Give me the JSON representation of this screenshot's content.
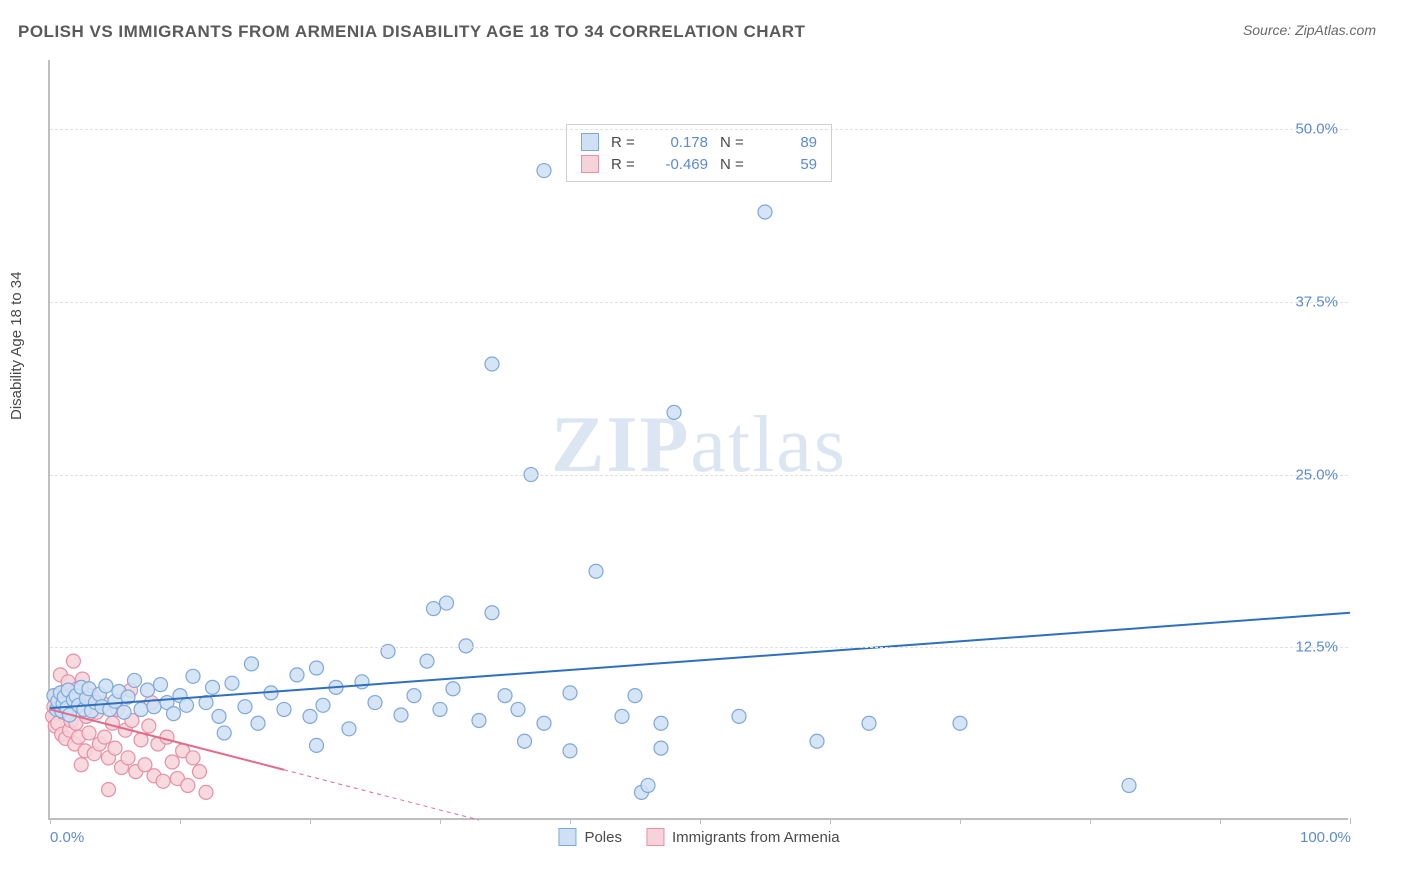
{
  "title": "POLISH VS IMMIGRANTS FROM ARMENIA DISABILITY AGE 18 TO 34 CORRELATION CHART",
  "source": "Source: ZipAtlas.com",
  "y_axis_label": "Disability Age 18 to 34",
  "watermark_a": "ZIP",
  "watermark_b": "atlas",
  "chart": {
    "type": "scatter",
    "background_color": "#ffffff",
    "grid_color": "#e0e0e0",
    "axis_color": "#bfbfbf",
    "label_color": "#5b8bd4",
    "title_color": "#5a5a5a",
    "xlim": [
      0,
      100
    ],
    "ylim": [
      0,
      55
    ],
    "x_ticks": [
      0,
      10,
      20,
      30,
      40,
      50,
      60,
      70,
      80,
      90,
      100
    ],
    "x_tick_labels": {
      "0": "0.0%",
      "100": "100.0%"
    },
    "y_grid": [
      12.5,
      25.0,
      37.5,
      50.0
    ],
    "y_tick_labels": [
      "12.5%",
      "25.0%",
      "37.5%",
      "50.0%"
    ],
    "marker_radius": 7,
    "marker_stroke_width": 1.2,
    "line_width": 2,
    "series": [
      {
        "name": "Poles",
        "fill": "#cfe0f4",
        "stroke": "#7fa8d9",
        "line_color": "#2f6fc1",
        "R": "0.178",
        "N": "89",
        "trend": {
          "x1": 0,
          "y1": 8.1,
          "x2": 100,
          "y2": 15.0,
          "dash": "none"
        },
        "points": [
          [
            0.3,
            9.0
          ],
          [
            0.5,
            8.0
          ],
          [
            0.6,
            8.6
          ],
          [
            0.8,
            9.2
          ],
          [
            0.9,
            7.9
          ],
          [
            1.0,
            8.4
          ],
          [
            1.1,
            8.9
          ],
          [
            1.3,
            8.1
          ],
          [
            1.4,
            9.4
          ],
          [
            1.5,
            7.6
          ],
          [
            1.8,
            8.7
          ],
          [
            2.0,
            9.0
          ],
          [
            2.2,
            8.3
          ],
          [
            2.4,
            9.6
          ],
          [
            2.6,
            8.0
          ],
          [
            2.8,
            8.8
          ],
          [
            3.0,
            9.5
          ],
          [
            3.2,
            7.9
          ],
          [
            3.5,
            8.5
          ],
          [
            3.8,
            9.1
          ],
          [
            4.0,
            8.2
          ],
          [
            4.3,
            9.7
          ],
          [
            4.6,
            8.0
          ],
          [
            5.0,
            8.6
          ],
          [
            5.3,
            9.3
          ],
          [
            5.7,
            7.8
          ],
          [
            6.0,
            8.9
          ],
          [
            6.5,
            10.1
          ],
          [
            7.0,
            8.0
          ],
          [
            7.5,
            9.4
          ],
          [
            8.0,
            8.2
          ],
          [
            8.5,
            9.8
          ],
          [
            9.0,
            8.5
          ],
          [
            9.5,
            7.7
          ],
          [
            10.0,
            9.0
          ],
          [
            10.5,
            8.3
          ],
          [
            11.0,
            10.4
          ],
          [
            12.0,
            8.5
          ],
          [
            12.5,
            9.6
          ],
          [
            13.0,
            7.5
          ],
          [
            14.0,
            9.9
          ],
          [
            15.0,
            8.2
          ],
          [
            15.5,
            11.3
          ],
          [
            16.0,
            7.0
          ],
          [
            17.0,
            9.2
          ],
          [
            18.0,
            8.0
          ],
          [
            19.0,
            10.5
          ],
          [
            20.0,
            7.5
          ],
          [
            20.5,
            11.0
          ],
          [
            21.0,
            8.3
          ],
          [
            22.0,
            9.6
          ],
          [
            23.0,
            6.6
          ],
          [
            24.0,
            10.0
          ],
          [
            25.0,
            8.5
          ],
          [
            26.0,
            12.2
          ],
          [
            27.0,
            7.6
          ],
          [
            28.0,
            9.0
          ],
          [
            29.0,
            11.5
          ],
          [
            29.5,
            15.3
          ],
          [
            30.5,
            15.7
          ],
          [
            30.0,
            8.0
          ],
          [
            31.0,
            9.5
          ],
          [
            32.0,
            12.6
          ],
          [
            33.0,
            7.2
          ],
          [
            34.0,
            15.0
          ],
          [
            34.0,
            33.0
          ],
          [
            35.0,
            9.0
          ],
          [
            36.0,
            8.0
          ],
          [
            37.0,
            25.0
          ],
          [
            38.0,
            47.0
          ],
          [
            38.0,
            7.0
          ],
          [
            40.0,
            9.2
          ],
          [
            40.0,
            5.0
          ],
          [
            42.0,
            18.0
          ],
          [
            44.0,
            7.5
          ],
          [
            45.0,
            9.0
          ],
          [
            45.5,
            2.0
          ],
          [
            46.0,
            2.5
          ],
          [
            47.0,
            7.0
          ],
          [
            48.0,
            29.5
          ],
          [
            53.0,
            7.5
          ],
          [
            55.0,
            44.0
          ],
          [
            59.0,
            5.7
          ],
          [
            63.0,
            7.0
          ],
          [
            70.0,
            7.0
          ],
          [
            83.0,
            2.5
          ],
          [
            47.0,
            5.2
          ],
          [
            36.5,
            5.7
          ],
          [
            20.5,
            5.4
          ],
          [
            13.4,
            6.3
          ]
        ]
      },
      {
        "name": "Immigrants from Armenia",
        "fill": "#f6d3db",
        "stroke": "#e98fa6",
        "line_color": "#e46a8a",
        "R": "-0.469",
        "N": "59",
        "trend": {
          "x1": 0,
          "y1": 8.0,
          "x2": 33,
          "y2": 0.0,
          "dash": "4 4",
          "solid_until": 18
        },
        "points": [
          [
            0.2,
            7.5
          ],
          [
            0.3,
            8.2
          ],
          [
            0.4,
            6.8
          ],
          [
            0.5,
            9.0
          ],
          [
            0.6,
            7.0
          ],
          [
            0.7,
            8.5
          ],
          [
            0.8,
            10.5
          ],
          [
            0.9,
            6.2
          ],
          [
            1.0,
            7.8
          ],
          [
            1.1,
            9.3
          ],
          [
            1.2,
            5.9
          ],
          [
            1.3,
            8.0
          ],
          [
            1.4,
            10.0
          ],
          [
            1.5,
            6.5
          ],
          [
            1.6,
            7.2
          ],
          [
            1.7,
            8.8
          ],
          [
            1.8,
            11.5
          ],
          [
            1.9,
            5.5
          ],
          [
            2.0,
            7.0
          ],
          [
            2.1,
            9.5
          ],
          [
            2.2,
            6.0
          ],
          [
            2.3,
            8.3
          ],
          [
            2.5,
            10.2
          ],
          [
            2.7,
            5.0
          ],
          [
            2.8,
            7.5
          ],
          [
            3.0,
            6.3
          ],
          [
            3.2,
            9.0
          ],
          [
            3.4,
            4.8
          ],
          [
            3.6,
            7.8
          ],
          [
            3.8,
            5.5
          ],
          [
            4.0,
            8.5
          ],
          [
            4.2,
            6.0
          ],
          [
            4.5,
            4.5
          ],
          [
            4.8,
            7.0
          ],
          [
            5.0,
            5.2
          ],
          [
            5.2,
            8.0
          ],
          [
            5.5,
            3.8
          ],
          [
            5.8,
            6.5
          ],
          [
            6.0,
            4.5
          ],
          [
            6.3,
            7.2
          ],
          [
            6.6,
            3.5
          ],
          [
            7.0,
            5.8
          ],
          [
            7.3,
            4.0
          ],
          [
            7.6,
            6.8
          ],
          [
            8.0,
            3.2
          ],
          [
            8.3,
            5.5
          ],
          [
            8.7,
            2.8
          ],
          [
            9.0,
            6.0
          ],
          [
            9.4,
            4.2
          ],
          [
            9.8,
            3.0
          ],
          [
            10.2,
            5.0
          ],
          [
            10.6,
            2.5
          ],
          [
            11.0,
            4.5
          ],
          [
            11.5,
            3.5
          ],
          [
            12.0,
            2.0
          ],
          [
            4.5,
            2.2
          ],
          [
            7.8,
            8.5
          ],
          [
            2.4,
            4.0
          ],
          [
            6.2,
            9.4
          ]
        ]
      }
    ]
  },
  "legend_bottom": [
    {
      "label": "Poles",
      "fill": "#cfe0f4",
      "stroke": "#7fa8d9"
    },
    {
      "label": "Immigrants from Armenia",
      "fill": "#f6d3db",
      "stroke": "#e98fa6"
    }
  ],
  "legend_top_labels": {
    "R": "R  =",
    "N": "N  ="
  }
}
